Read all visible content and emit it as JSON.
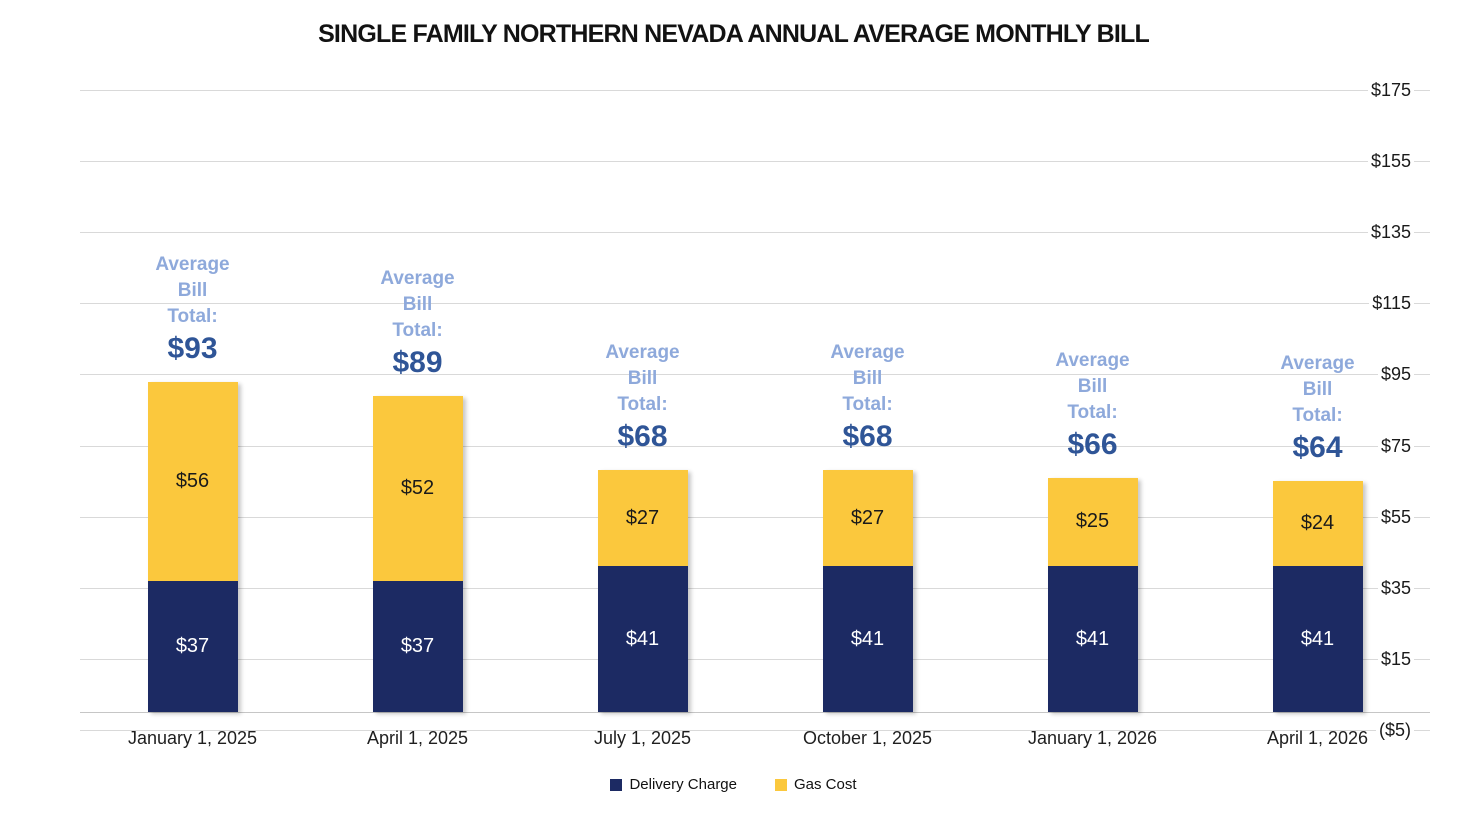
{
  "title": "SINGLE FAMILY NORTHERN NEVADA ANNUAL AVERAGE MONTHLY BILL",
  "colors": {
    "delivery": "#1C2A63",
    "gas": "#FBC83D",
    "annotation_label": "#8EA9DB",
    "annotation_total": "#2F5597",
    "gridline": "#D9D9D9",
    "axis_line": "#C6C6C6",
    "label_on_gas": "#1A1A1A",
    "label_on_delivery": "#FFFFFF"
  },
  "annotation": {
    "lines": [
      "Average",
      "Bill",
      "Total:"
    ]
  },
  "legend": [
    {
      "label": "Delivery Charge",
      "color_key": "delivery"
    },
    {
      "label": "Gas Cost",
      "color_key": "gas"
    }
  ],
  "chart_data": {
    "type": "bar",
    "stacked": true,
    "title": "SINGLE FAMILY NORTHERN NEVADA ANNUAL AVERAGE MONTHLY BILL",
    "categories": [
      "January 1, 2025",
      "April 1, 2025",
      "July 1, 2025",
      "October 1, 2025",
      "January 1, 2026",
      "April 1, 2026"
    ],
    "series": [
      {
        "name": "Delivery Charge",
        "values": [
          37,
          37,
          41,
          41,
          41,
          41
        ]
      },
      {
        "name": "Gas Cost",
        "values": [
          56,
          52,
          27,
          27,
          25,
          24
        ]
      }
    ],
    "segment_labels": {
      "delivery": [
        "$37",
        "$37",
        "$41",
        "$41",
        "$41",
        "$41"
      ],
      "gas": [
        "$56",
        "$52",
        "$27",
        "$27",
        "$25",
        "$24"
      ]
    },
    "totals": [
      93,
      89,
      68,
      68,
      66,
      64
    ],
    "total_labels": [
      "$93",
      "$89",
      "$68",
      "$68",
      "$66",
      "$64"
    ],
    "y_axis": {
      "min": -5,
      "max": 175,
      "ticks": [
        175,
        155,
        135,
        115,
        95,
        75,
        55,
        35,
        15,
        -5
      ],
      "tick_labels": [
        "$175",
        "$155",
        "$135",
        "$115",
        "$95",
        "$75",
        "$55",
        "$35",
        "$15",
        "($5)"
      ],
      "side": "right"
    },
    "grid": true,
    "legend_position": "bottom"
  }
}
